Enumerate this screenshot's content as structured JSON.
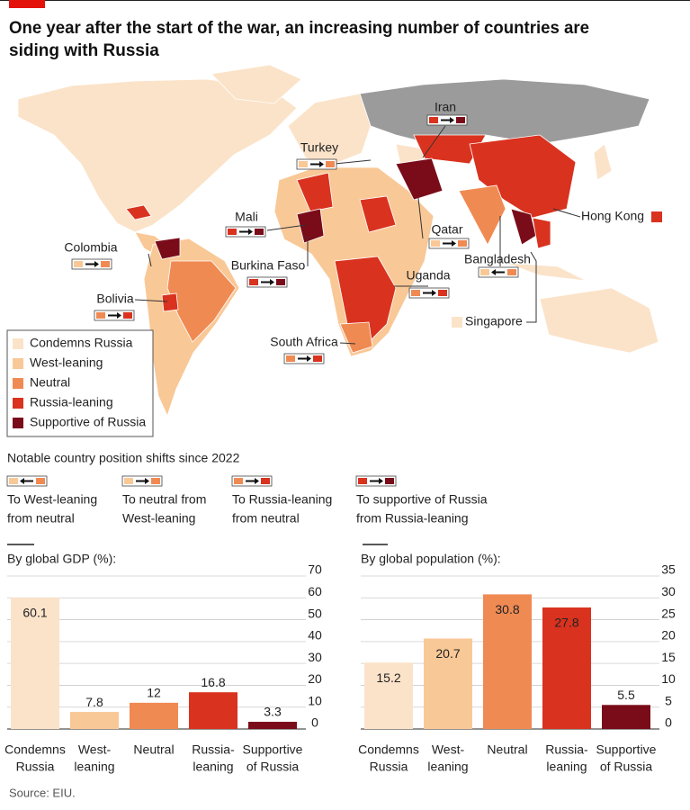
{
  "header": {
    "title": [
      "One year after the start of the war, an increasing number of countries are",
      "siding with Russia"
    ]
  },
  "map": {
    "labels": [
      "Iran",
      "Turkey",
      "Mali",
      "Qatar",
      "Hong Kong",
      "Colombia",
      "Burkina Faso",
      "Bangladesh",
      "Uganda",
      "Bolivia",
      "Singapore",
      "South Africa"
    ]
  },
  "legend": {
    "items": [
      {
        "label": "Condemns Russia",
        "color": "#fbe3c9"
      },
      {
        "label": "West-leaning",
        "color": "#f9c897"
      },
      {
        "label": "Neutral",
        "color": "#f08a53"
      },
      {
        "label": "Russia-leaning",
        "color": "#d9321f"
      },
      {
        "label": "Supportive of Russia",
        "color": "#7a0c1a"
      }
    ]
  },
  "shifts": {
    "title": "Notable country position shifts since 2022",
    "items": [
      [
        "To West-leaning",
        "from neutral"
      ],
      [
        "To neutral from",
        "West-leaning"
      ],
      [
        "To Russia-leaning",
        "from neutral"
      ],
      [
        "To supportive of Russia",
        "from Russia-leaning"
      ]
    ]
  },
  "chart_data": [
    {
      "type": "bar",
      "title": "By global GDP (%):",
      "categories": [
        [
          "Condemns",
          "Russia"
        ],
        [
          "West-",
          "leaning"
        ],
        [
          "Neutral"
        ],
        [
          "Russia-",
          "leaning"
        ],
        [
          "Supportive",
          "of Russia"
        ]
      ],
      "values": [
        60.1,
        7.8,
        12,
        16.8,
        3.3
      ],
      "colors": [
        "#fbe3c9",
        "#f9c897",
        "#f08a53",
        "#d9321f",
        "#7a0c1a"
      ],
      "ylim": [
        0,
        70
      ],
      "yticks": [
        0,
        10,
        20,
        30,
        40,
        50,
        60,
        70
      ],
      "grid": true
    },
    {
      "type": "bar",
      "title": "By global population (%):",
      "categories": [
        [
          "Condemns",
          "Russia"
        ],
        [
          "West-",
          "leaning"
        ],
        [
          "Neutral"
        ],
        [
          "Russia-",
          "leaning"
        ],
        [
          "Supportive",
          "of Russia"
        ]
      ],
      "values": [
        15.2,
        20.7,
        30.8,
        27.8,
        5.5
      ],
      "colors": [
        "#fbe3c9",
        "#f9c897",
        "#f08a53",
        "#d9321f",
        "#7a0c1a"
      ],
      "ylim": [
        0,
        35
      ],
      "yticks": [
        0,
        5,
        10,
        15,
        20,
        25,
        30,
        35
      ],
      "grid": true
    }
  ],
  "source": "Source: EIU."
}
